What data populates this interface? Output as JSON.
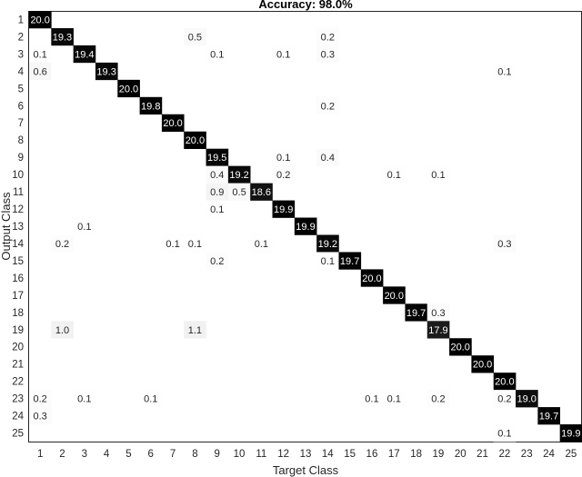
{
  "chart_data": {
    "type": "heatmap",
    "title": "Accuracy: 98.0%",
    "xlabel": "Target Class",
    "ylabel": "Output Class",
    "x_categories": [
      "1",
      "2",
      "3",
      "4",
      "5",
      "6",
      "7",
      "8",
      "9",
      "10",
      "11",
      "12",
      "13",
      "14",
      "15",
      "16",
      "17",
      "18",
      "19",
      "20",
      "21",
      "22",
      "23",
      "24",
      "25"
    ],
    "y_categories": [
      "1",
      "2",
      "3",
      "4",
      "5",
      "6",
      "7",
      "8",
      "9",
      "10",
      "11",
      "12",
      "13",
      "14",
      "15",
      "16",
      "17",
      "18",
      "19",
      "20",
      "21",
      "22",
      "23",
      "24",
      "25"
    ],
    "grid": false,
    "colormap": "white-to-black",
    "colors": {
      "high": "#000000",
      "low": "#ffffff",
      "text_dark": "#262626",
      "text_light": "#ffffff"
    },
    "cells": [
      {
        "row": 1,
        "col": 1,
        "value": 20.0
      },
      {
        "row": 2,
        "col": 2,
        "value": 19.3
      },
      {
        "row": 2,
        "col": 8,
        "value": 0.5
      },
      {
        "row": 2,
        "col": 14,
        "value": 0.2
      },
      {
        "row": 3,
        "col": 1,
        "value": 0.1
      },
      {
        "row": 3,
        "col": 3,
        "value": 19.4
      },
      {
        "row": 3,
        "col": 9,
        "value": 0.1
      },
      {
        "row": 3,
        "col": 12,
        "value": 0.1
      },
      {
        "row": 3,
        "col": 14,
        "value": 0.3
      },
      {
        "row": 4,
        "col": 1,
        "value": 0.6
      },
      {
        "row": 4,
        "col": 4,
        "value": 19.3
      },
      {
        "row": 4,
        "col": 22,
        "value": 0.1
      },
      {
        "row": 5,
        "col": 5,
        "value": 20.0
      },
      {
        "row": 6,
        "col": 6,
        "value": 19.8
      },
      {
        "row": 6,
        "col": 14,
        "value": 0.2
      },
      {
        "row": 7,
        "col": 7,
        "value": 20.0
      },
      {
        "row": 8,
        "col": 8,
        "value": 20.0
      },
      {
        "row": 9,
        "col": 9,
        "value": 19.5
      },
      {
        "row": 9,
        "col": 12,
        "value": 0.1
      },
      {
        "row": 9,
        "col": 14,
        "value": 0.4
      },
      {
        "row": 10,
        "col": 9,
        "value": 0.4
      },
      {
        "row": 10,
        "col": 10,
        "value": 19.2
      },
      {
        "row": 10,
        "col": 12,
        "value": 0.2
      },
      {
        "row": 10,
        "col": 17,
        "value": 0.1
      },
      {
        "row": 10,
        "col": 19,
        "value": 0.1
      },
      {
        "row": 11,
        "col": 9,
        "value": 0.9
      },
      {
        "row": 11,
        "col": 10,
        "value": 0.5
      },
      {
        "row": 11,
        "col": 11,
        "value": 18.6
      },
      {
        "row": 12,
        "col": 9,
        "value": 0.1
      },
      {
        "row": 12,
        "col": 12,
        "value": 19.9
      },
      {
        "row": 13,
        "col": 3,
        "value": 0.1
      },
      {
        "row": 13,
        "col": 13,
        "value": 19.9
      },
      {
        "row": 14,
        "col": 2,
        "value": 0.2
      },
      {
        "row": 14,
        "col": 7,
        "value": 0.1
      },
      {
        "row": 14,
        "col": 8,
        "value": 0.1
      },
      {
        "row": 14,
        "col": 11,
        "value": 0.1
      },
      {
        "row": 14,
        "col": 14,
        "value": 19.2
      },
      {
        "row": 14,
        "col": 22,
        "value": 0.3
      },
      {
        "row": 15,
        "col": 9,
        "value": 0.2
      },
      {
        "row": 15,
        "col": 14,
        "value": 0.1
      },
      {
        "row": 15,
        "col": 15,
        "value": 19.7
      },
      {
        "row": 16,
        "col": 16,
        "value": 20.0
      },
      {
        "row": 17,
        "col": 17,
        "value": 20.0
      },
      {
        "row": 18,
        "col": 18,
        "value": 19.7
      },
      {
        "row": 18,
        "col": 19,
        "value": 0.3
      },
      {
        "row": 19,
        "col": 2,
        "value": 1.0
      },
      {
        "row": 19,
        "col": 8,
        "value": 1.1
      },
      {
        "row": 19,
        "col": 19,
        "value": 17.9
      },
      {
        "row": 20,
        "col": 20,
        "value": 20.0
      },
      {
        "row": 21,
        "col": 21,
        "value": 20.0
      },
      {
        "row": 22,
        "col": 22,
        "value": 20.0
      },
      {
        "row": 23,
        "col": 1,
        "value": 0.2
      },
      {
        "row": 23,
        "col": 3,
        "value": 0.1
      },
      {
        "row": 23,
        "col": 6,
        "value": 0.1
      },
      {
        "row": 23,
        "col": 16,
        "value": 0.1
      },
      {
        "row": 23,
        "col": 17,
        "value": 0.1
      },
      {
        "row": 23,
        "col": 19,
        "value": 0.2
      },
      {
        "row": 23,
        "col": 22,
        "value": 0.2
      },
      {
        "row": 23,
        "col": 23,
        "value": 19.0
      },
      {
        "row": 24,
        "col": 1,
        "value": 0.3
      },
      {
        "row": 24,
        "col": 24,
        "value": 19.7
      },
      {
        "row": 25,
        "col": 22,
        "value": 0.1
      },
      {
        "row": 25,
        "col": 25,
        "value": 19.9
      }
    ]
  }
}
